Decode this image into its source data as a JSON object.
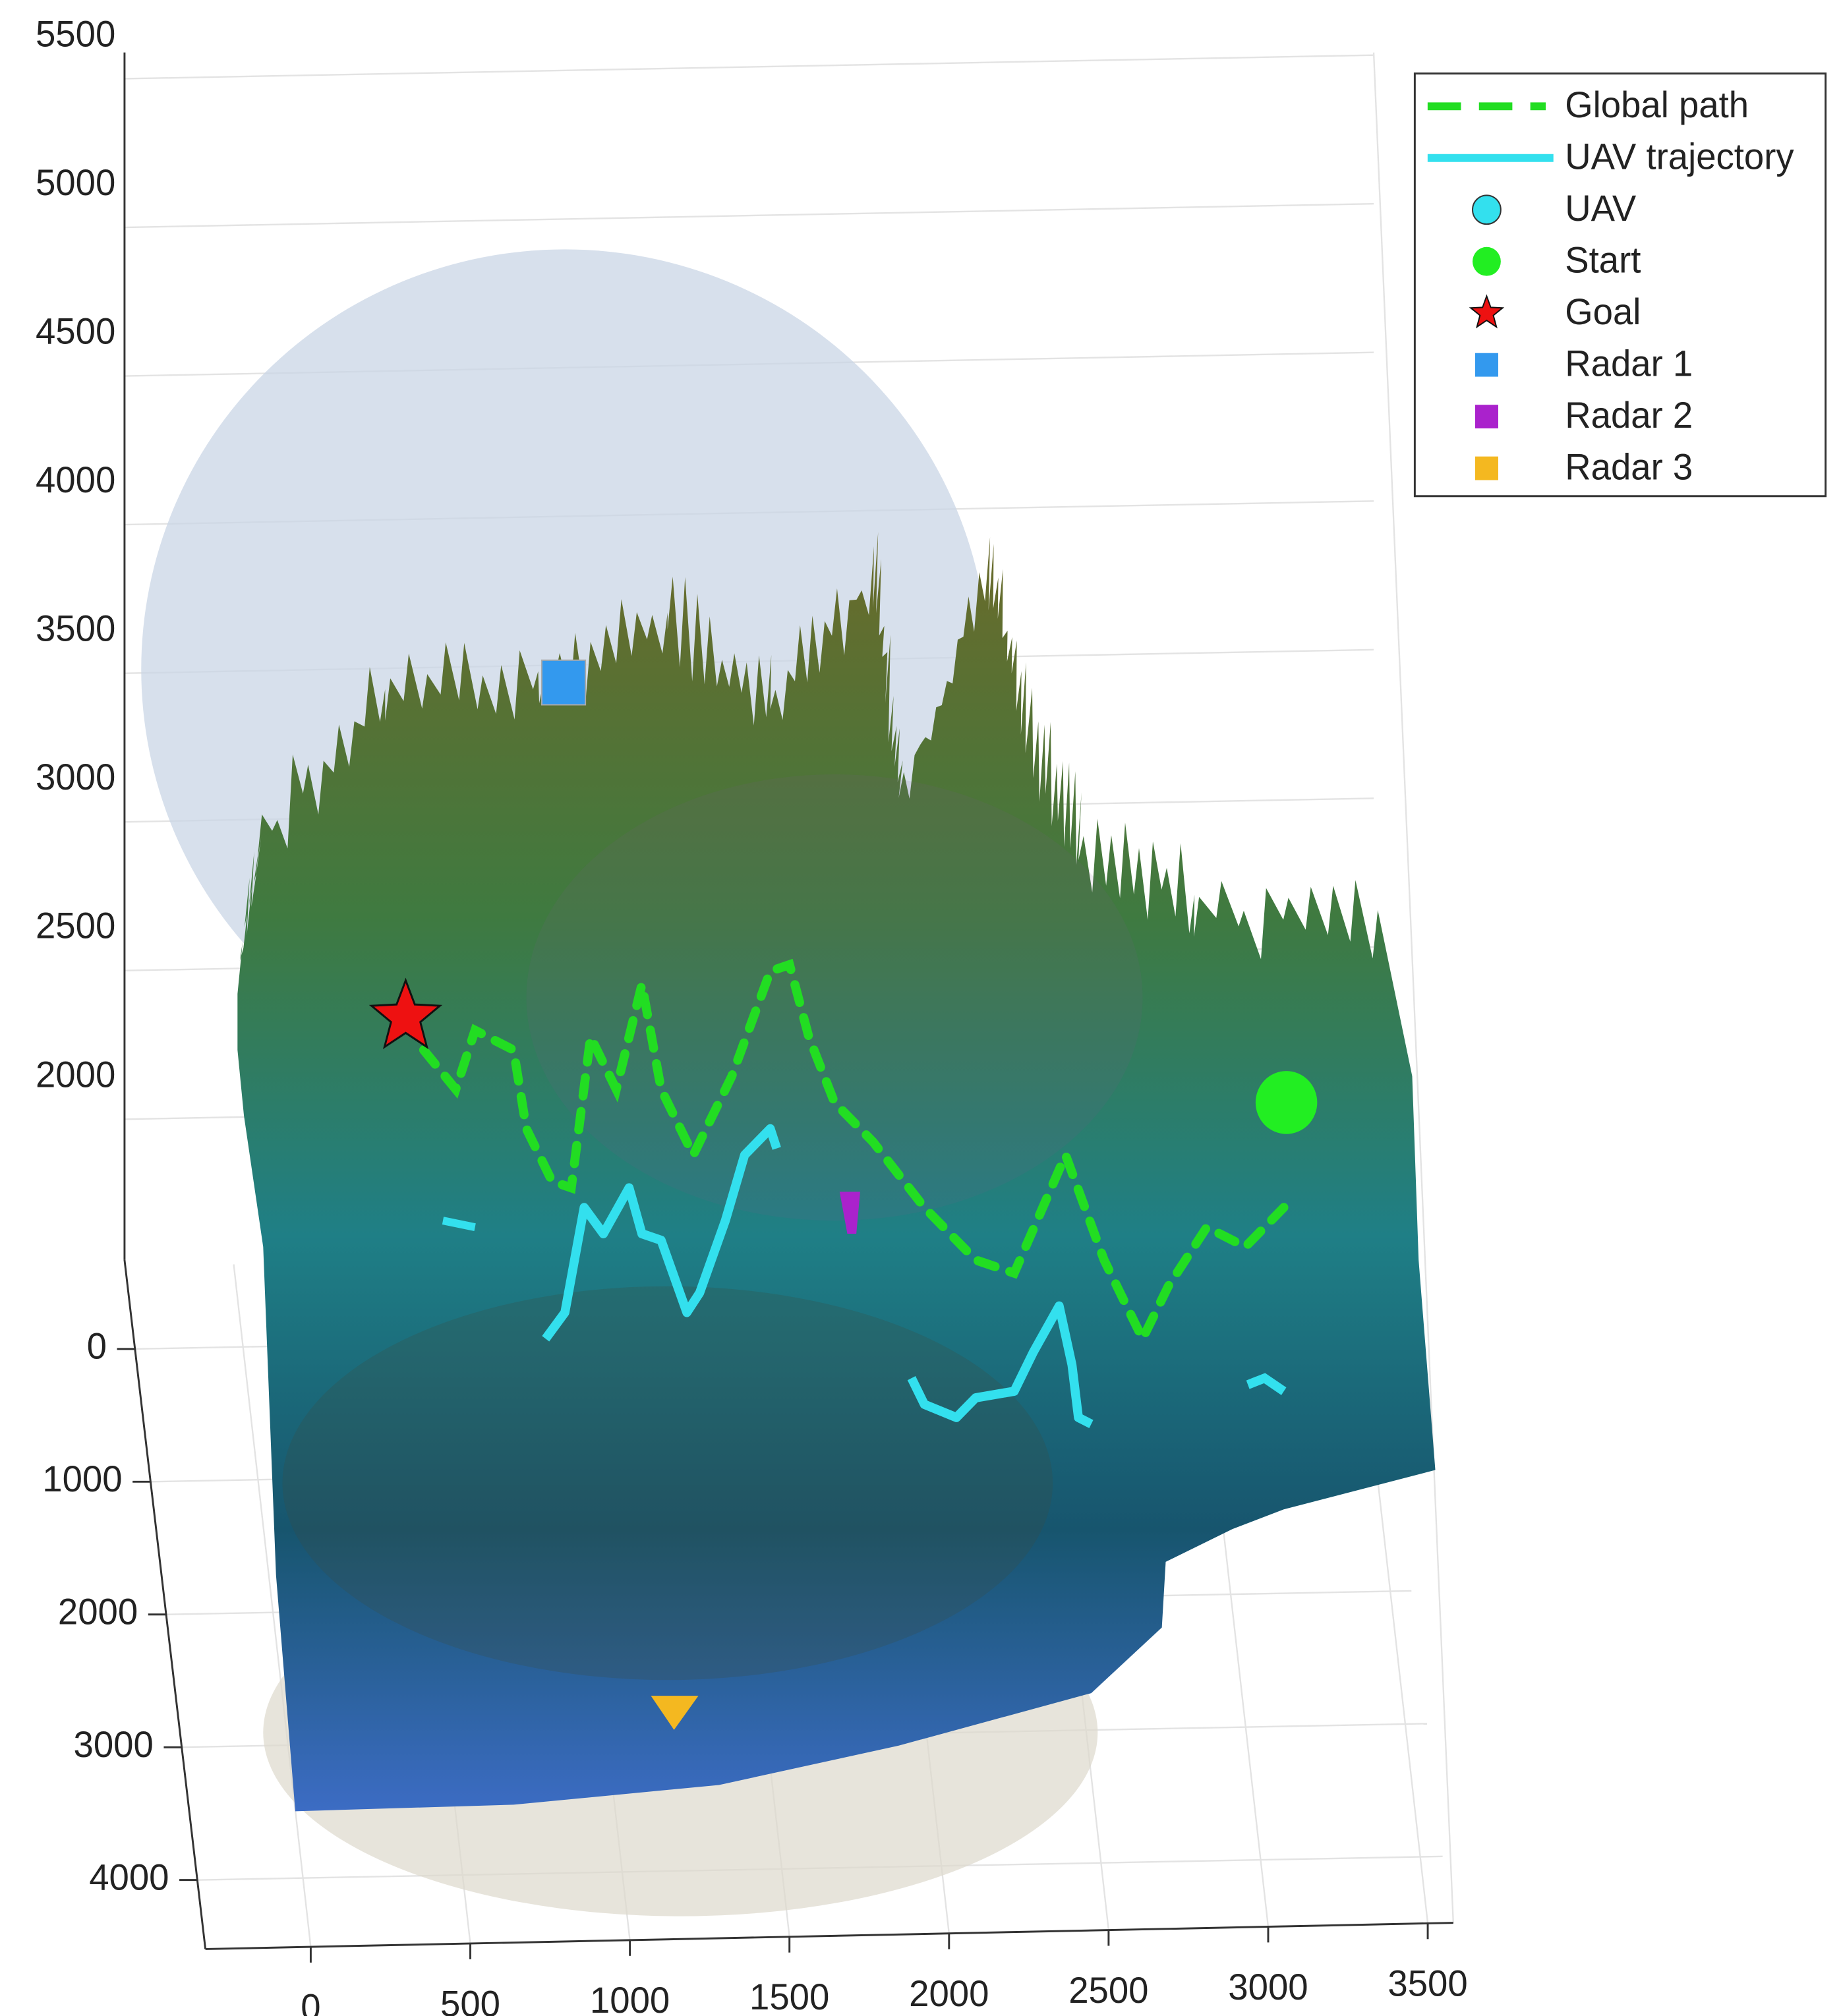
{
  "chart_data": {
    "type": "surface3d",
    "xlim": [
      -330,
      3580
    ],
    "xticks": [
      0,
      500,
      1000,
      1500,
      2000,
      2500,
      3000,
      3500
    ],
    "ylim": [
      -670,
      4520
    ],
    "yticks": [
      0,
      1000,
      2000,
      3000,
      4000
    ],
    "zlim": [
      1500,
      5500
    ],
    "zticks": [
      2000,
      2500,
      3000,
      3500,
      4000,
      4500,
      5000,
      5500
    ],
    "grid": true,
    "legend_position": "upper right",
    "legend": [
      {
        "name": "Global path",
        "color": "#22dd22",
        "marker": "dash"
      },
      {
        "name": "UAV trajectory",
        "color": "#33e0ee",
        "marker": "line"
      },
      {
        "name": "UAV",
        "color": "#33e0ee",
        "marker": "circle"
      },
      {
        "name": "Start",
        "color": "#22ee22",
        "marker": "circle"
      },
      {
        "name": "Goal",
        "color": "#ee1111",
        "marker": "star"
      },
      {
        "name": "Radar 1",
        "color": "#3399ee",
        "marker": "square"
      },
      {
        "name": "Radar 2",
        "color": "#aa22cc",
        "marker": "square"
      },
      {
        "name": "Radar 3",
        "color": "#f4b820",
        "marker": "square"
      }
    ]
  }
}
